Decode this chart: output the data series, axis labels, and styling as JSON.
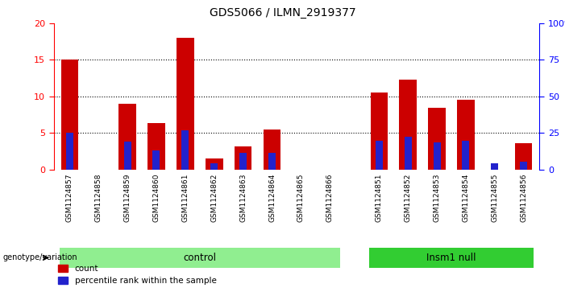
{
  "title": "GDS5066 / ILMN_2919377",
  "samples": [
    "GSM1124857",
    "GSM1124858",
    "GSM1124859",
    "GSM1124860",
    "GSM1124861",
    "GSM1124862",
    "GSM1124863",
    "GSM1124864",
    "GSM1124865",
    "GSM1124866",
    "GSM1124851",
    "GSM1124852",
    "GSM1124853",
    "GSM1124854",
    "GSM1124855",
    "GSM1124856"
  ],
  "count_values": [
    15,
    0,
    9,
    6.3,
    18,
    1.5,
    3.2,
    5.5,
    0,
    0,
    10.5,
    12.3,
    8.4,
    9.5,
    0,
    3.6
  ],
  "percentile_values": [
    25,
    0,
    19,
    13,
    27,
    4,
    11.5,
    11.5,
    0,
    0,
    19.5,
    22.5,
    18.5,
    19.5,
    4,
    5.5
  ],
  "groups": [
    {
      "label": "control",
      "start": 0,
      "end": 9,
      "color": "#90ee90"
    },
    {
      "label": "Insm1 null",
      "start": 10,
      "end": 15,
      "color": "#32cd32"
    }
  ],
  "ylim_left": [
    0,
    20
  ],
  "ylim_right": [
    0,
    100
  ],
  "yticks_left": [
    0,
    5,
    10,
    15,
    20
  ],
  "yticks_right": [
    0,
    25,
    50,
    75,
    100
  ],
  "bar_color_red": "#cc0000",
  "bar_color_blue": "#2222cc",
  "bg_color": "#d3d3d3",
  "bar_width": 0.6,
  "blue_bar_width": 0.25,
  "legend_count": "count",
  "legend_pct": "percentile rank within the sample",
  "genotype_label": "genotype/variation",
  "n_control": 10,
  "n_insm1": 6
}
